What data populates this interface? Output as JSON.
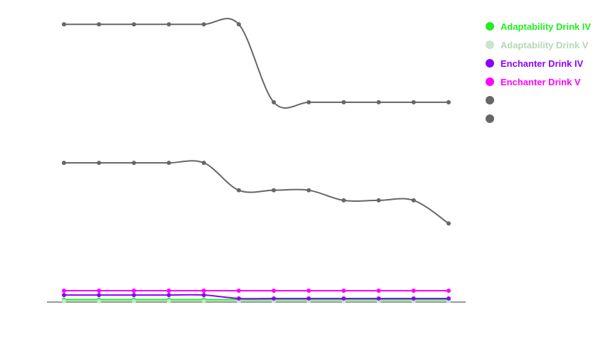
{
  "chart_data": {
    "type": "line",
    "title": "",
    "xlabel": "",
    "ylabel": "",
    "x": [
      1,
      2,
      3,
      4,
      5,
      6,
      7,
      8,
      9,
      10,
      11,
      12
    ],
    "ylim": [
      0,
      100
    ],
    "grid": false,
    "smooth": true,
    "legend_position": "top-right",
    "series": [
      {
        "name": "Adaptability Drink IV",
        "color": "#22ee22",
        "values": [
          0.6,
          0.6,
          0.6,
          0.6,
          0.6,
          0.6,
          0.6,
          0.6,
          0.6,
          0.6,
          0.6,
          0.6
        ]
      },
      {
        "name": "Adaptability Drink V",
        "color": "#c8e6c9",
        "values": [
          0.1,
          0.1,
          0.1,
          0.1,
          0.1,
          0.1,
          0.1,
          0.1,
          0.1,
          0.1,
          0.1,
          0.1
        ]
      },
      {
        "name": "Enchanter Drink IV",
        "color": "#8b00ff",
        "values": [
          2.2,
          2.2,
          2.2,
          2.2,
          2.2,
          1.0,
          1.0,
          1.0,
          1.0,
          1.0,
          1.0,
          1.0
        ]
      },
      {
        "name": "Enchanter Drink V",
        "color": "#ff00ff",
        "values": [
          3.7,
          3.7,
          3.7,
          3.7,
          3.7,
          3.7,
          3.7,
          3.7,
          3.7,
          3.7,
          3.7,
          3.7
        ]
      },
      {
        "name": "",
        "color": "#666666",
        "values": [
          96,
          96,
          96,
          96,
          96,
          96,
          69,
          69,
          69,
          69,
          69,
          69
        ]
      },
      {
        "name": "",
        "color": "#666666",
        "values": [
          48,
          48,
          48,
          48,
          48,
          38.5,
          38.5,
          38.5,
          35,
          35,
          35,
          27
        ]
      }
    ]
  }
}
